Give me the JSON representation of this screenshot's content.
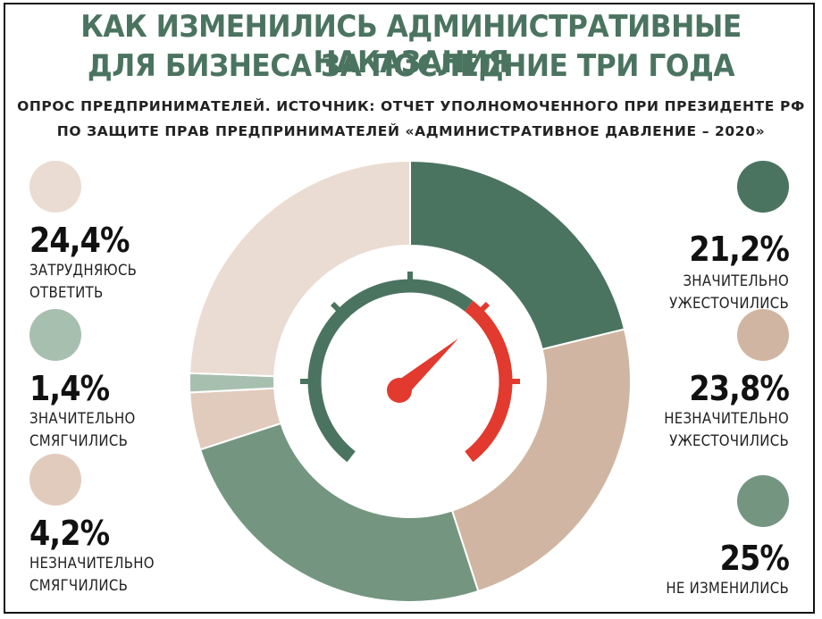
{
  "title_line1": "КАК ИЗМЕНИЛИСЬ АДМИНИСТРАТИВНЫЕ НАКАЗАНИЯ",
  "title_line2": "ДЛЯ БИЗНЕСА ЗА ПОСЛЕДНИЕ ТРИ ГОДА",
  "subtitle_line1": "ОПРОС ПРЕДПРИНИМАТЕЛЕЙ. ИСТОЧНИК: ОТЧЕТ УПОЛНОМОЧЕННОГО ПРИ ПРЕЗИДЕНТЕ РФ",
  "subtitle_line2": "ПО ЗАЩИТЕ ПРАВ ПРЕДПРИНИМАТЕЛЕЙ «АДМИНИСТРАТИВНОЕ ДАВЛЕНИЕ – 2020»",
  "center_icon": "speedometer-icon",
  "colors": {
    "title": "#4b7460",
    "gauge_green": "#4b7460",
    "gauge_red": "#e23a2e"
  },
  "chart_data": {
    "type": "pie",
    "style": "donut",
    "slices": [
      {
        "value": 21.2,
        "value_label": "21,2%",
        "label_lines": [
          "ЗНАЧИТЕЛЬНО",
          "УЖЕСТОЧИЛИСЬ"
        ],
        "color": "#4b7460"
      },
      {
        "value": 23.8,
        "value_label": "23,8%",
        "label_lines": [
          "НЕЗНАЧИТЕЛЬНО",
          "УЖЕСТОЧИЛИСЬ"
        ],
        "color": "#d0b6a2"
      },
      {
        "value": 25,
        "value_label": "25%",
        "label_lines": [
          "НЕ ИЗМЕНИЛИСЬ"
        ],
        "color": "#749681"
      },
      {
        "value": 4.2,
        "value_label": "4,2%",
        "label_lines": [
          "НЕЗНАЧИТЕЛЬНО",
          "СМЯГЧИЛИСЬ"
        ],
        "color": "#e1cbbd"
      },
      {
        "value": 1.4,
        "value_label": "1,4%",
        "label_lines": [
          "ЗНАЧИТЕЛЬНО",
          "СМЯГЧИЛИСЬ"
        ],
        "color": "#a7bfaf"
      },
      {
        "value": 24.4,
        "value_label": "24,4%",
        "label_lines": [
          "ЗАТРУДНЯЮСЬ",
          "ОТВЕТИТЬ"
        ],
        "color": "#eadcd2"
      }
    ]
  }
}
